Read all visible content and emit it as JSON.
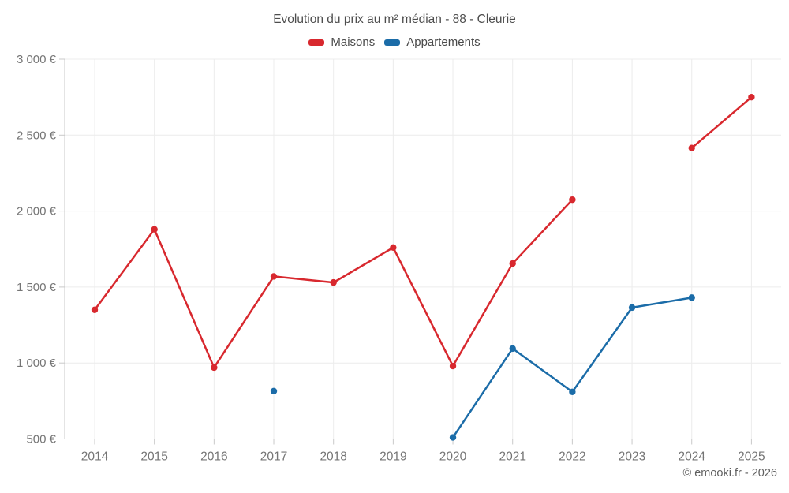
{
  "header": {
    "title": "Evolution du prix au m² médian - 88 - Cleurie"
  },
  "legend": {
    "items": [
      {
        "label": "Maisons",
        "color": "#d8282e"
      },
      {
        "label": "Appartements",
        "color": "#1b6ca8"
      }
    ]
  },
  "footer": {
    "watermark": "© emooki.fr - 2026"
  },
  "colors": {
    "maisons": "#d8282e",
    "appartements": "#1b6ca8",
    "grid": "#ececec",
    "axis": "#c9c9c9",
    "tick_label": "#757575",
    "title_text": "#4d4d4d"
  },
  "chart_data": {
    "type": "line",
    "title": "Evolution du prix au m² médian - 88 - Cleurie",
    "categories": [
      "2014",
      "2015",
      "2016",
      "2017",
      "2018",
      "2019",
      "2020",
      "2021",
      "2022",
      "2023",
      "2024",
      "2025"
    ],
    "series": [
      {
        "name": "Maisons",
        "color": "#d8282e",
        "values": [
          1350,
          1880,
          970,
          1570,
          1530,
          1760,
          980,
          1655,
          2075,
          null,
          2415,
          2750
        ]
      },
      {
        "name": "Appartements",
        "color": "#1b6ca8",
        "values": [
          null,
          null,
          null,
          815,
          null,
          null,
          510,
          1095,
          810,
          1365,
          1430,
          null
        ]
      }
    ],
    "xlabel": "",
    "ylabel": "",
    "ylim": [
      500,
      3000
    ],
    "y_ticks": [
      500,
      1000,
      1500,
      2000,
      2500,
      3000
    ],
    "y_tick_suffix": " €",
    "grid": true,
    "legend_position": "top",
    "line_gaps_break_line": true
  }
}
